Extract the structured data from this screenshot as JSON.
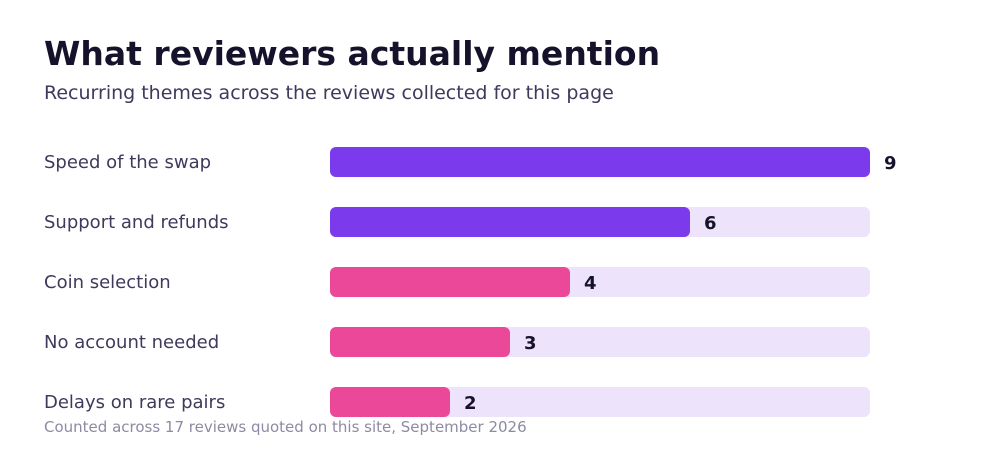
{
  "title": "What reviewers actually mention",
  "subtitle": "Recurring themes across the reviews collected for this page",
  "footnote": "Counted across 17 reviews quoted on this site, September 2026",
  "colors": {
    "positive": "#7c3aed",
    "negative": "#ec4899",
    "track": "#ede3fb"
  },
  "chart_data": {
    "type": "bar",
    "orientation": "horizontal",
    "categories": [
      "Speed of the swap",
      "Support and refunds",
      "Coin selection",
      "No account needed",
      "Delays on rare pairs"
    ],
    "values": [
      9,
      6,
      4,
      3,
      2
    ],
    "bar_colors": [
      "#7c3aed",
      "#7c3aed",
      "#ec4899",
      "#ec4899",
      "#ec4899"
    ],
    "xlim": [
      0,
      9
    ],
    "grid": false,
    "legend": "none"
  }
}
